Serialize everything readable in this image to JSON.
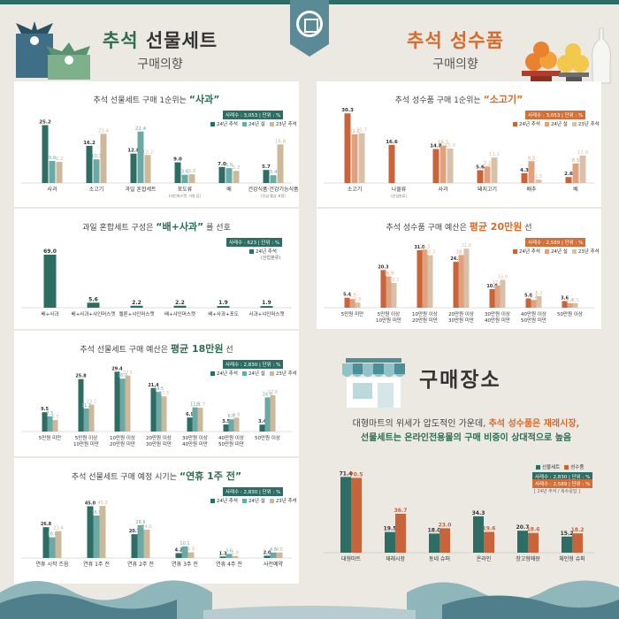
{
  "header_left": {
    "title_a": "추석",
    "title_b": "선물세트",
    "subtitle": "구매의향"
  },
  "header_right": {
    "title_a": "추석",
    "title_b": "성수품",
    "subtitle": "구매의향"
  },
  "colors": {
    "dark_green": "#2e6d64",
    "teal": "#6aa9a5",
    "beige": "#cdb89a",
    "orange": "#c8633a",
    "light_orange": "#e0a27e",
    "sand": "#d9c0a8"
  },
  "legend_gift": [
    "24년 추석",
    "24년 설",
    "23년 추석"
  ],
  "legend_place": [
    "선물세트",
    "성수품"
  ],
  "panels": {
    "p1": {
      "pre": "추석 선물세트 구매 1순위는 ",
      "hl": "“사과”",
      "post": "",
      "badge": "사례수 : 3,053 | 단위 : %"
    },
    "p2": {
      "pre": "과일 혼합세트 구성은 ",
      "hl": "“배+사과”",
      "post": " 를 선호",
      "badge": "사례수 : 623 | 단위 : %",
      "note": "(24년 추석)",
      "note2": "(산업분류)"
    },
    "p3": {
      "pre": "추석 선물세트 구매 예산은 ",
      "hl": "평균 18만원",
      "post": " 선",
      "badge": "사례수 : 2,830 | 단위 : %"
    },
    "p4": {
      "pre": "추석 선물세트 구매 예정 시기는 ",
      "hl": "“연휴 1주 전”",
      "post": "",
      "badge": "사례수 : 2,830 | 단위 : %"
    },
    "p5": {
      "pre": "추석 성수품 구매 1순위는 ",
      "hl": "“소고기”",
      "post": "",
      "badge": "사례수 : 3,053 | 단위 : %"
    },
    "p6": {
      "pre": "추석 성수품 구매 예산은 ",
      "hl": "평균 20만원",
      "post": " 선",
      "badge": "사례수 : 2,589 | 단위 : %"
    },
    "p7": {
      "badge1": "사례수 : 2,830 | 단위 : %",
      "badge2": "사례수 : 2,589 | 단위 : %",
      "note": "[ 24년 추석 / 복수응답 ]"
    }
  },
  "place": {
    "title": "구매장소",
    "desc_1": "대형마트의 위세가 압도적인 가운데, ",
    "desc_2": "추석 성수품은 재래시장,",
    "desc_3": "선물세트는 온라인전용몰의 구매 비중이 상대적으로 높음"
  },
  "chart_data": [
    {
      "id": "gift_rank",
      "type": "bar",
      "categories": [
        "사과",
        "소고기",
        "과일 혼합세트",
        "포도류",
        "배",
        "건강식품·건강기능식품"
      ],
      "category_notes": [
        "",
        "",
        "",
        "(샤인머스캣, 거봉 등)",
        "",
        "(인삼·홍삼 포함)"
      ],
      "series": [
        {
          "name": "24년 추석",
          "values": [
            25.2,
            16.2,
            12.8,
            9.0,
            7.0,
            5.7
          ]
        },
        {
          "name": "24년 설",
          "values": [
            9.6,
            10.3,
            22.4,
            3.6,
            6.5,
            3.4
          ]
        },
        {
          "name": "23년 추석",
          "values": [
            9.2,
            21.4,
            12.2,
            3.8,
            5.3,
            16.8
          ]
        }
      ]
    },
    {
      "id": "fruit_mix",
      "type": "bar",
      "categories": [
        "배+사과",
        "배+사과+샤인머스캣",
        "멜론+샤인머스캣",
        "배+샤인머스캣",
        "배+사과+포도",
        "사과+샤인머스캣"
      ],
      "series": [
        {
          "name": "24년 추석",
          "values": [
            69.0,
            5.6,
            2.2,
            2.2,
            1.9,
            1.9
          ]
        }
      ]
    },
    {
      "id": "gift_budget",
      "type": "bar",
      "categories": [
        "5만원 미만",
        "5만원 이상 10만원 미만",
        "10만원 이상 20만원 미만",
        "20만원 이상 30만원 미만",
        "30만원 이상 40만원 미만",
        "40만원 이상 50만원 미만",
        "50만원 이상"
      ],
      "series": [
        {
          "name": "24년 추석",
          "values": [
            9.5,
            25.8,
            29.4,
            21.4,
            6.9,
            3.5,
            3.4
          ]
        },
        {
          "name": "24년 설",
          "values": [
            7.5,
            11.3,
            26.0,
            19.5,
            11.9,
            6.0,
            16.8
          ]
        },
        {
          "name": "23년 추석",
          "values": [
            5.7,
            13.2,
            27.5,
            17.3,
            11.7,
            6.8,
            17.8
          ]
        }
      ]
    },
    {
      "id": "gift_timing",
      "type": "bar",
      "categories": [
        "연휴 시작 즈음",
        "연휴 1주 전",
        "연휴 2주 전",
        "연휴 3주 전",
        "연휴 4주 전",
        "사전예약"
      ],
      "series": [
        {
          "name": "24년 추석",
          "values": [
            26.8,
            45.0,
            20.7,
            4.2,
            1.3,
            2.0
          ]
        },
        {
          "name": "24년 설",
          "values": [
            18.0,
            36.9,
            28.6,
            10.1,
            3.6,
            4.8
          ]
        },
        {
          "name": "23년 추석",
          "values": [
            23.4,
            45.3,
            24.6,
            4.9,
            1.8,
            4.8
          ]
        }
      ]
    },
    {
      "id": "goods_rank",
      "type": "bar",
      "categories": [
        "소고기",
        "나물류",
        "사과",
        "돼지고기",
        "배추",
        "배"
      ],
      "category_notes": [
        "",
        "(산업분류)",
        "",
        "",
        "",
        ""
      ],
      "series": [
        {
          "name": "24년 추석",
          "values": [
            30.3,
            16.6,
            14.8,
            5.6,
            4.3,
            2.6
          ]
        },
        {
          "name": "24년 설",
          "values": [
            21.2,
            null,
            16.3,
            7.2,
            9.5,
            8.5
          ]
        },
        {
          "name": "23년 추석",
          "values": [
            21.7,
            null,
            15.0,
            11.1,
            1.5,
            12.0
          ]
        }
      ]
    },
    {
      "id": "goods_budget",
      "type": "bar",
      "categories": [
        "5만원 미만",
        "5만원 이상 10만원 미만",
        "10만원 이상 20만원 미만",
        "20만원 이상 30만원 미만",
        "30만원 이상 40만원 미만",
        "40만원 이상 50만원 미만",
        "50만원 이상"
      ],
      "series": [
        {
          "name": "24년 추석",
          "values": [
            5.4,
            20.3,
            31.0,
            24.7,
            10.0,
            5.0,
            3.6
          ]
        },
        {
          "name": "24년 설",
          "values": [
            4.7,
            16.9,
            31.3,
            28.4,
            12.0,
            4.2,
            2.4
          ]
        },
        {
          "name": "23년 추석",
          "values": [
            2.8,
            13.3,
            28.3,
            31.8,
            15.0,
            6.3,
            2.5
          ]
        }
      ]
    },
    {
      "id": "purchase_place",
      "type": "bar",
      "categories": [
        "대형마트",
        "재래시장",
        "동네 슈퍼",
        "온라인",
        "창고형매장",
        "체인형 슈퍼"
      ],
      "series": [
        {
          "name": "선물세트",
          "values": [
            71.4,
            19.5,
            18.0,
            34.3,
            20.7,
            15.2
          ]
        },
        {
          "name": "성수품",
          "values": [
            70.5,
            36.7,
            23.0,
            19.6,
            18.6,
            18.2
          ]
        }
      ]
    }
  ]
}
